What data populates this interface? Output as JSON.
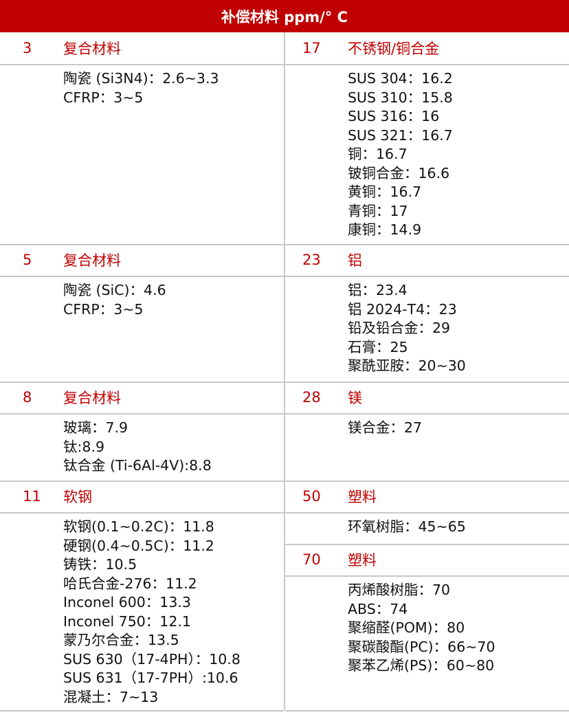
{
  "title": "补偿材料 ppm/° C",
  "colors": {
    "accent": "#c00000",
    "rule": "#c8c8c8"
  },
  "left": [
    {
      "value": "3",
      "name": "复合材料",
      "items": [
        "陶瓷 (Si3N4)：2.6~3.3",
        "CFRP：3~5"
      ]
    },
    {
      "value": "5",
      "name": "复合材料",
      "items": [
        "陶瓷 (SiC)：4.6",
        "CFRP：3~5"
      ]
    },
    {
      "value": "8",
      "name": "复合材料",
      "items": [
        "玻璃：7.9",
        "钛:8.9",
        "钛合金 (Ti-6Al-4V):8.8"
      ]
    },
    {
      "value": "11",
      "name": "软钢",
      "items": [
        "软钢(0.1~0.2C)：11.8",
        "硬钢(0.4~0.5C)：11.2",
        "铸铁：10.5",
        "哈氏合金-276：11.2",
        "Inconel 600：13.3",
        "Inconel 750：12.1",
        "蒙乃尔合金：13.5",
        "SUS 630（17-4PH）：10.8",
        "SUS 631（17-7PH）:10.6",
        "混凝土：7~13"
      ]
    }
  ],
  "right": [
    {
      "value": "17",
      "name": "不锈钢/铜合金",
      "items": [
        "SUS 304：16.2",
        "SUS 310：15.8",
        "SUS 316：16",
        "SUS 321：16.7",
        "铜：16.7",
        "铍铜合金：16.6",
        "黄铜：16.7",
        "青铜：17",
        "康铜：14.9"
      ]
    },
    {
      "value": "23",
      "name": "铝",
      "items": [
        "铝：23.4",
        "铝 2024-T4：23",
        "铅及铅合金：29",
        "石膏：25",
        "聚酰亚胺：20~30"
      ]
    },
    {
      "value": "28",
      "name": "镁",
      "items": [
        "镁合金：27"
      ]
    },
    {
      "value": "50",
      "name": "塑料",
      "items": [
        "环氧树脂：45~65"
      ]
    },
    {
      "value": "70",
      "name": "塑料",
      "items": [
        "丙烯酸树脂：70",
        "ABS：74",
        "聚缩醛(POM)：80",
        "聚碳酸酯(PC)：66~70",
        "聚苯乙烯(PS)：60~80"
      ]
    }
  ]
}
